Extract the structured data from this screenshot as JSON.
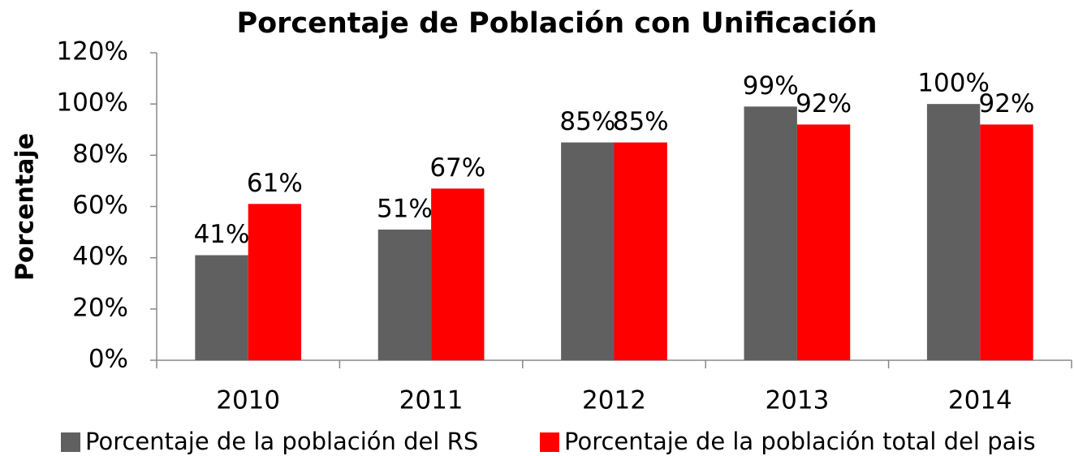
{
  "chart_data": {
    "type": "bar",
    "title": "Porcentaje de Población con Unificación",
    "y_label": "Porcentaje",
    "categories": [
      "2010",
      "2011",
      "2012",
      "2013",
      "2014"
    ],
    "series": [
      {
        "name": "Porcentaje de la población del RS",
        "color": "#606060",
        "values": [
          41,
          51,
          85,
          99,
          100
        ],
        "value_labels": [
          "41%",
          "51%",
          "85%",
          "99%",
          "100%"
        ]
      },
      {
        "name": "Porcentaje de la población total del pais",
        "color": "#ff0000",
        "values": [
          61,
          67,
          85,
          92,
          92
        ],
        "value_labels": [
          "61%",
          "67%",
          "85%",
          "92%",
          "92%"
        ]
      }
    ],
    "ylim": [
      0,
      120
    ],
    "yticks": [
      {
        "value": 0,
        "label": "0%"
      },
      {
        "value": 20,
        "label": "20%"
      },
      {
        "value": 40,
        "label": "40%"
      },
      {
        "value": 60,
        "label": "60%"
      },
      {
        "value": 80,
        "label": "80%"
      },
      {
        "value": 100,
        "label": "100%"
      },
      {
        "value": 120,
        "label": "120%"
      }
    ],
    "legend": "bottom"
  }
}
